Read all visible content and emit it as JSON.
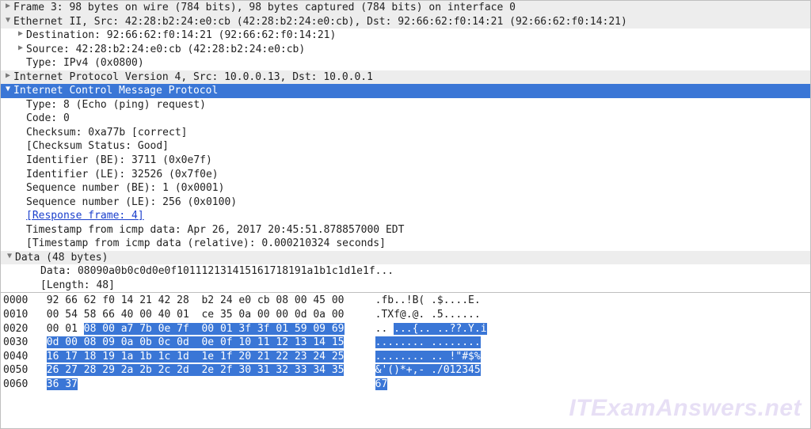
{
  "frame": {
    "summary": "Frame 3: 98 bytes on wire (784 bits), 98 bytes captured (784 bits) on interface 0"
  },
  "eth": {
    "summary": "Ethernet II, Src: 42:28:b2:24:e0:cb (42:28:b2:24:e0:cb), Dst: 92:66:62:f0:14:21 (92:66:62:f0:14:21)",
    "dst": "Destination: 92:66:62:f0:14:21 (92:66:62:f0:14:21)",
    "src": "Source: 42:28:b2:24:e0:cb (42:28:b2:24:e0:cb)",
    "type": "Type: IPv4 (0x0800)"
  },
  "ip": {
    "summary": "Internet Protocol Version 4, Src: 10.0.0.13, Dst: 10.0.0.1"
  },
  "icmp": {
    "summary": "Internet Control Message Protocol",
    "type": "Type: 8 (Echo (ping) request)",
    "code": "Code: 0",
    "checksum": "Checksum: 0xa77b [correct]",
    "checksum_status": "[Checksum Status: Good]",
    "id_be": "Identifier (BE): 3711 (0x0e7f)",
    "id_le": "Identifier (LE): 32526 (0x7f0e)",
    "seq_be": "Sequence number (BE): 1 (0x0001)",
    "seq_le": "Sequence number (LE): 256 (0x0100)",
    "response": "[Response frame: 4]",
    "ts": "Timestamp from icmp data: Apr 26, 2017 20:45:51.878857000 EDT",
    "ts_rel": "[Timestamp from icmp data (relative): 0.000210324 seconds]",
    "data_hdr": "Data (48 bytes)",
    "data": "Data: 08090a0b0c0d0e0f101112131415161718191a1b1c1d1e1f...",
    "length": "[Length: 48]"
  },
  "hex": {
    "lines": [
      {
        "off": "0000",
        "pre": "92 66 62 f0 14 21 42 28  b2 24 e0 cb 08 00 45 00",
        "hl": "",
        "asc_pre": ".fb..!B( .$....E.",
        "asc_hl": ""
      },
      {
        "off": "0010",
        "pre": "00 54 58 66 40 00 40 01  ce 35 0a 00 00 0d 0a 00",
        "hl": "",
        "asc_pre": ".TXf@.@. .5......",
        "asc_hl": ""
      },
      {
        "off": "0020",
        "pre": "00 01 ",
        "hl": "08 00 a7 7b 0e 7f  00 01 3f 3f 01 59 09 69",
        "asc_pre": ".. ",
        "asc_hl": "...{.. ..??.Y.i"
      },
      {
        "off": "0030",
        "pre": "",
        "hl": "0d 00 08 09 0a 0b 0c 0d  0e 0f 10 11 12 13 14 15",
        "asc_pre": "",
        "asc_hl": "........ ........"
      },
      {
        "off": "0040",
        "pre": "",
        "hl": "16 17 18 19 1a 1b 1c 1d  1e 1f 20 21 22 23 24 25",
        "asc_pre": "",
        "asc_hl": "........ .. !\"#$%"
      },
      {
        "off": "0050",
        "pre": "",
        "hl": "26 27 28 29 2a 2b 2c 2d  2e 2f 30 31 32 33 34 35",
        "asc_pre": "",
        "asc_hl": "&'()*+,- ./012345"
      },
      {
        "off": "0060",
        "pre": "",
        "hl": "36 37",
        "asc_pre": "",
        "asc_hl": "67"
      }
    ]
  },
  "watermark": "ITExamAnswers.net"
}
